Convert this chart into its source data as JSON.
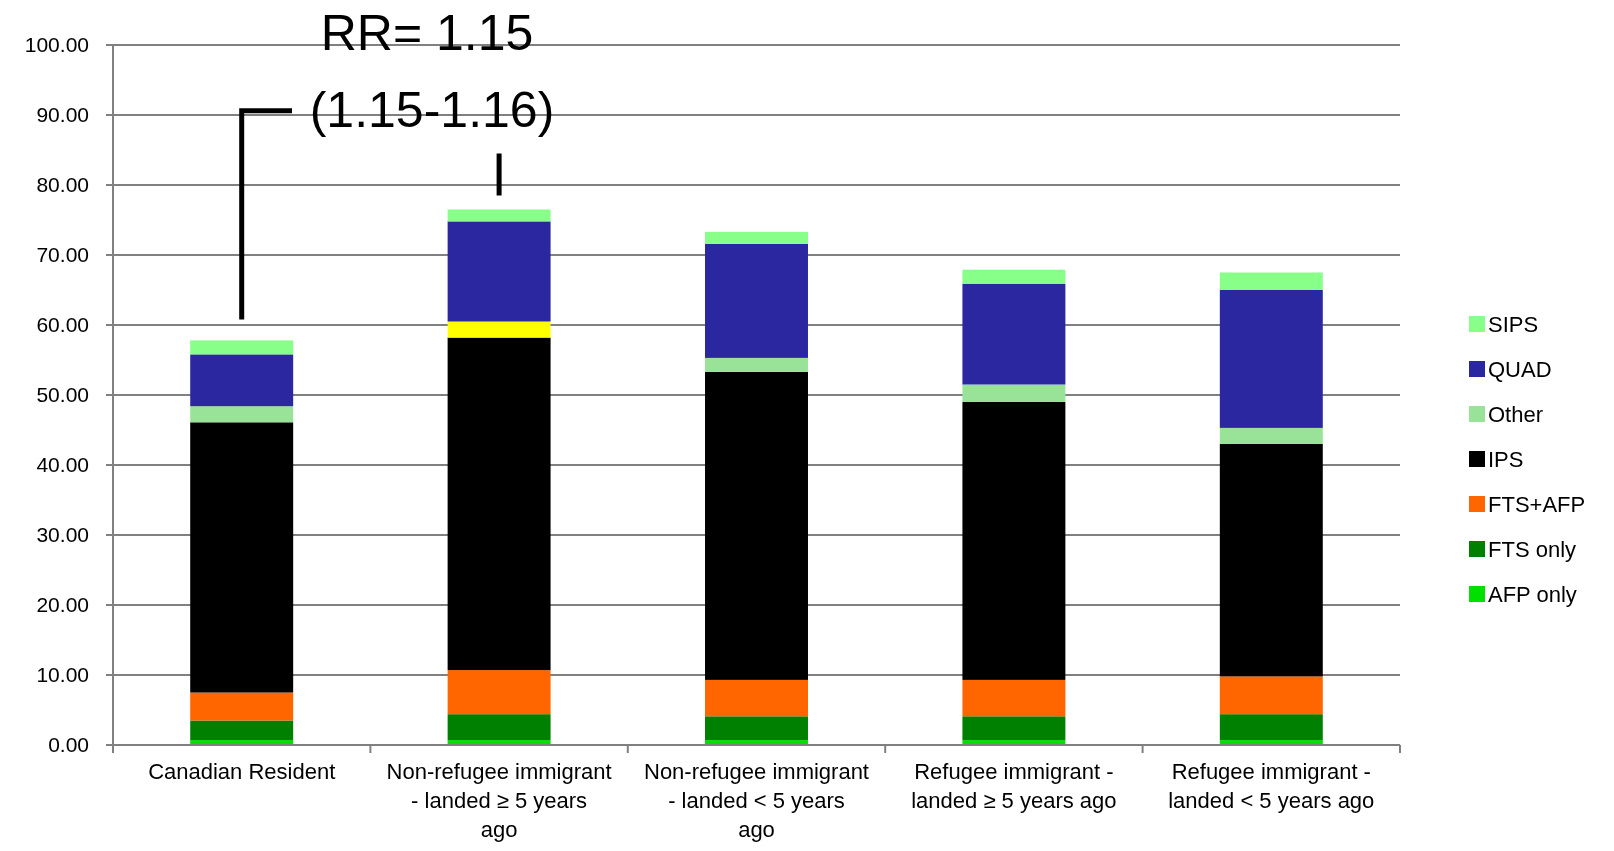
{
  "chart_data": {
    "type": "bar",
    "stacked": true,
    "categories": [
      "Canadian Resident",
      "Non-refugee immigrant - landed ≥ 5 years ago",
      "Non-refugee immigrant - landed < 5 years ago",
      "Refugee immigrant - landed ≥ 5 years ago",
      "Refugee immigrant - landed < 5 years ago"
    ],
    "series": [
      {
        "name": "AFP only",
        "color": "#00e000",
        "values": [
          0.7,
          0.7,
          0.7,
          0.7,
          0.7
        ]
      },
      {
        "name": "FTS only",
        "color": "#008000",
        "values": [
          2.8,
          3.7,
          3.4,
          3.4,
          3.7
        ]
      },
      {
        "name": "FTS+AFP",
        "color": "#ff6600",
        "values": [
          4.0,
          6.3,
          5.2,
          5.2,
          5.4
        ]
      },
      {
        "name": "IPS",
        "color": "#000000",
        "values": [
          38.6,
          47.5,
          44.0,
          39.7,
          33.2
        ]
      },
      {
        "name": "Other",
        "color": "#99e399",
        "colors": [
          "#99e399",
          "#ffff00",
          "#99e399",
          "#99e399",
          "#99e399"
        ],
        "values": [
          2.3,
          2.3,
          2.0,
          2.5,
          2.3
        ]
      },
      {
        "name": "QUAD",
        "color": "#2a27a1",
        "values": [
          7.4,
          14.3,
          16.3,
          14.4,
          19.7
        ]
      },
      {
        "name": "SIPS",
        "color": "#88ff88",
        "values": [
          2.0,
          1.7,
          1.7,
          2.0,
          2.5
        ]
      }
    ],
    "ylim": [
      0,
      100
    ],
    "yticks": [
      {
        "value": 0,
        "label": "0.00"
      },
      {
        "value": 10,
        "label": "10.00"
      },
      {
        "value": 20,
        "label": "20.00"
      },
      {
        "value": 30,
        "label": "30.00"
      },
      {
        "value": 40,
        "label": "40.00"
      },
      {
        "value": 50,
        "label": "50.00"
      },
      {
        "value": 60,
        "label": "60.00"
      },
      {
        "value": 70,
        "label": "70.00"
      },
      {
        "value": 80,
        "label": "80.00"
      },
      {
        "value": 90,
        "label": "90.00"
      },
      {
        "value": 100,
        "label": "100.00"
      }
    ],
    "grid": "y",
    "legend": "right",
    "annotations": [
      "RR= 1.15",
      "(1.15-1.16)"
    ]
  }
}
